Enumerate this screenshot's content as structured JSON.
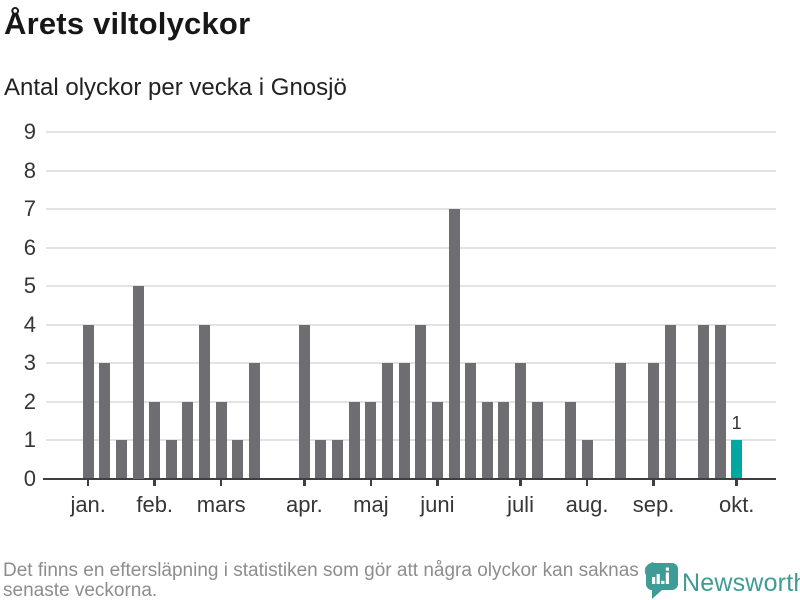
{
  "header": {
    "title": "Årets viltolyckor",
    "subtitle": "Antal olyckor per vecka i Gnosjö"
  },
  "footer": {
    "note_line1": "Det finns en eftersläpning i statistiken som gör att några olyckor kan saknas de",
    "note_line2": "senaste veckorna.",
    "brand": "Newsworthy"
  },
  "colors": {
    "bar": "#6e6e72",
    "highlight": "#00a8a2",
    "grid": "#e3e3e3",
    "axis": "#3f3f3f",
    "text": "#363636",
    "title": "#171717",
    "muted": "#8d8d8d",
    "brand": "#3e9b95"
  },
  "chart_data": {
    "type": "bar",
    "title": "Årets viltolyckor",
    "subtitle": "Antal olyckor per vecka i Gnosjö",
    "ylabel": "Antal olyckor per vecka",
    "xlabel": "",
    "ylim": [
      0,
      9
    ],
    "yticks": [
      0,
      1,
      2,
      3,
      4,
      5,
      6,
      7,
      8,
      9
    ],
    "grid": true,
    "weeks": [
      4,
      3,
      1,
      5,
      2,
      1,
      2,
      4,
      2,
      1,
      3,
      0,
      0,
      4,
      1,
      1,
      2,
      2,
      3,
      3,
      4,
      2,
      7,
      3,
      2,
      2,
      3,
      2,
      0,
      2,
      1,
      0,
      3,
      0,
      3,
      4,
      0,
      4,
      4,
      1
    ],
    "highlight_index": 39,
    "highlight_label": "1",
    "month_ticks": [
      {
        "label": "jan.",
        "week_index": 0
      },
      {
        "label": "feb.",
        "week_index": 4
      },
      {
        "label": "mars",
        "week_index": 8
      },
      {
        "label": "apr.",
        "week_index": 13
      },
      {
        "label": "maj",
        "week_index": 17
      },
      {
        "label": "juni",
        "week_index": 21
      },
      {
        "label": "juli",
        "week_index": 26
      },
      {
        "label": "aug.",
        "week_index": 30
      },
      {
        "label": "sep.",
        "week_index": 34
      },
      {
        "label": "okt.",
        "week_index": 39
      }
    ]
  }
}
